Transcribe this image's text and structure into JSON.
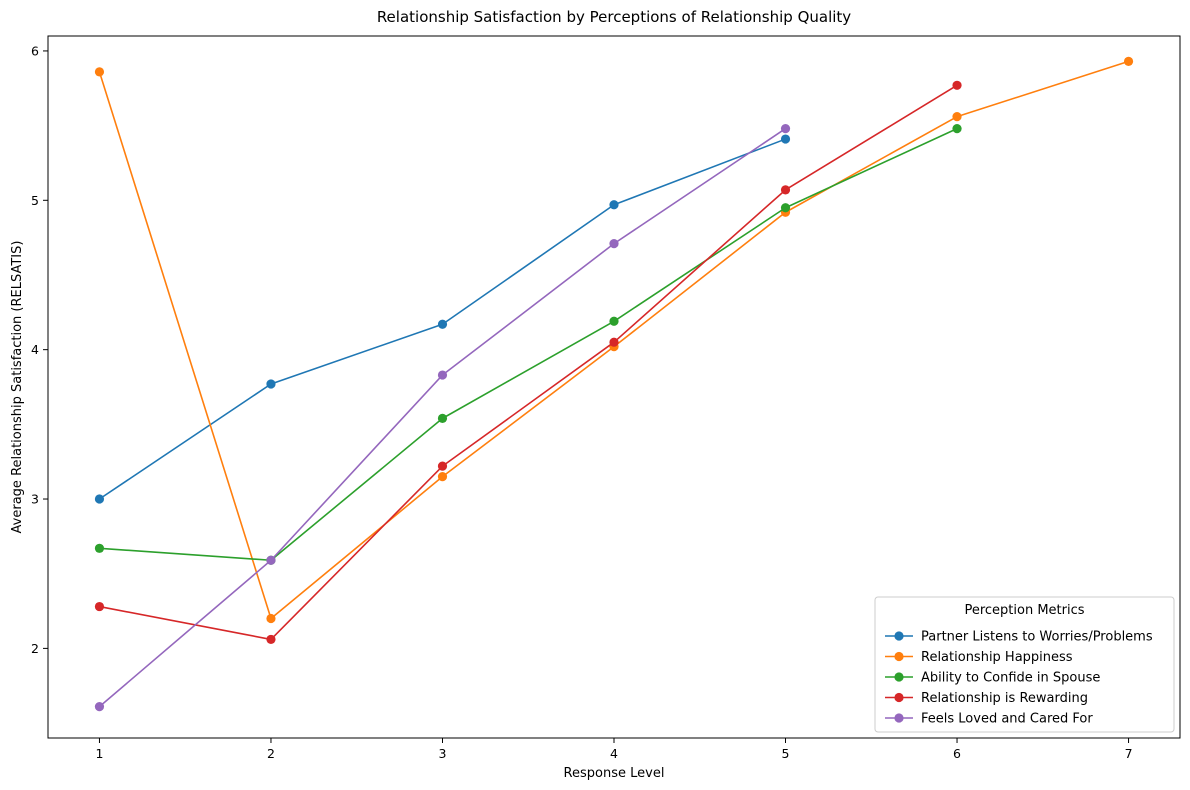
{
  "chart_data": {
    "type": "line",
    "title": "Relationship Satisfaction by Perceptions of Relationship Quality",
    "xlabel": "Response Level",
    "ylabel": "Average Relationship Satisfaction (RELSATIS)",
    "xlim": [
      0.7,
      7.3
    ],
    "ylim": [
      1.4,
      6.1
    ],
    "x_ticks": [
      1,
      2,
      3,
      4,
      5,
      6,
      7
    ],
    "y_ticks": [
      2,
      3,
      4,
      5,
      6
    ],
    "grid": false,
    "legend": {
      "title": "Perception Metrics",
      "placement": "lower-right"
    },
    "series": [
      {
        "name": "Partner Listens to Worries/Problems",
        "color": "#1f77b4",
        "x": [
          1,
          2,
          3,
          4,
          5
        ],
        "y": [
          3.0,
          3.77,
          4.17,
          4.97,
          5.41
        ]
      },
      {
        "name": "Relationship Happiness",
        "color": "#ff7f0e",
        "x": [
          1,
          2,
          3,
          4,
          5,
          6,
          7
        ],
        "y": [
          5.86,
          2.2,
          3.15,
          4.02,
          4.92,
          5.56,
          5.93
        ]
      },
      {
        "name": "Ability to Confide in Spouse",
        "color": "#2ca02c",
        "x": [
          1,
          2,
          3,
          4,
          5,
          6
        ],
        "y": [
          2.67,
          2.59,
          3.54,
          4.19,
          4.95,
          5.48
        ]
      },
      {
        "name": "Relationship is Rewarding",
        "color": "#d62728",
        "x": [
          1,
          2,
          3,
          4,
          5,
          6
        ],
        "y": [
          2.28,
          2.06,
          3.22,
          4.05,
          5.07,
          5.77
        ]
      },
      {
        "name": "Feels Loved and Cared For",
        "color": "#9467bd",
        "x": [
          1,
          2,
          3,
          4,
          5
        ],
        "y": [
          1.61,
          2.59,
          3.83,
          4.71,
          5.48
        ]
      }
    ]
  }
}
